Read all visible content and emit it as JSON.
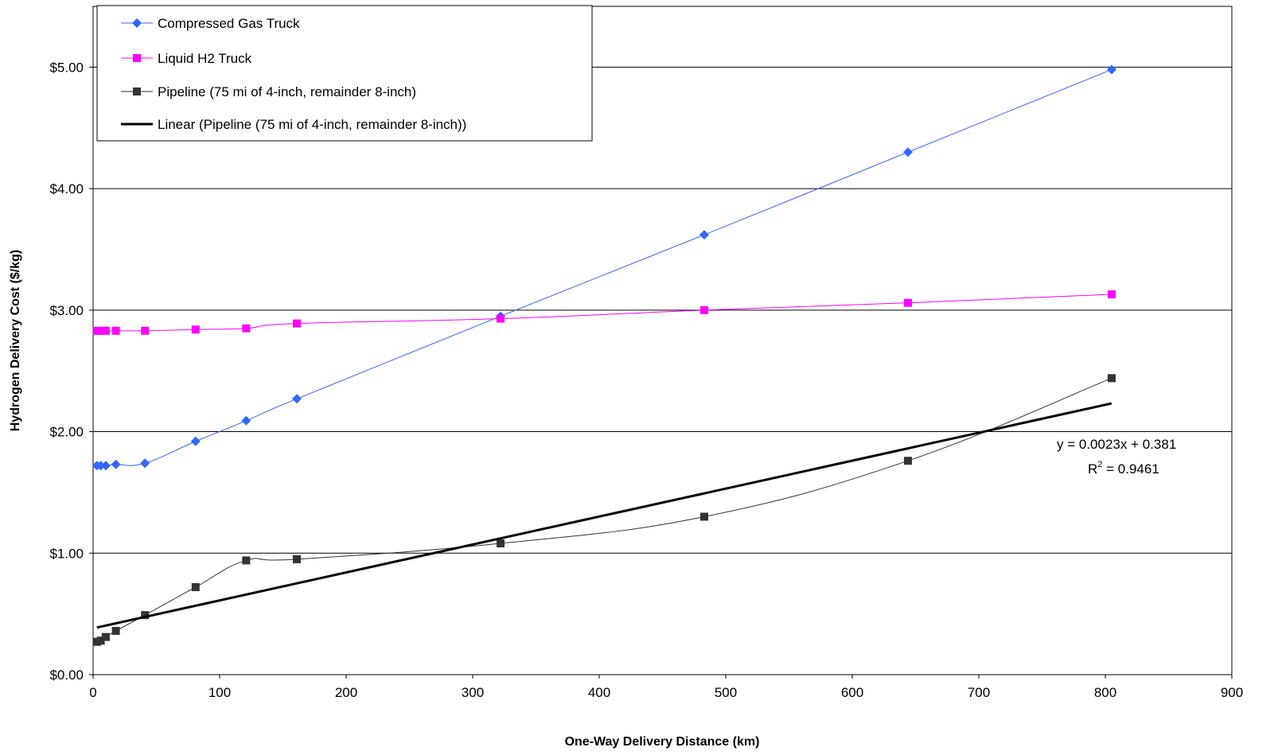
{
  "chart_data": {
    "type": "line",
    "xlabel": "One-Way Delivery Distance (km)",
    "ylabel": "Hydrogen Delivery Cost ($/kg)",
    "xlim": [
      0,
      900
    ],
    "ylim": [
      0,
      5.5
    ],
    "x_ticks": [
      0,
      100,
      200,
      300,
      400,
      500,
      600,
      700,
      800,
      900
    ],
    "x_tick_labels": [
      "0",
      "100",
      "200",
      "300",
      "400",
      "500",
      "600",
      "700",
      "800",
      "900"
    ],
    "y_ticks": [
      0,
      1,
      2,
      3,
      4,
      5
    ],
    "y_tick_labels": [
      "$0.00",
      "$1.00",
      "$2.00",
      "$3.00",
      "$4.00",
      "$5.00"
    ],
    "grid": "horizontal major gridlines",
    "legend_position": "top-left",
    "series": [
      {
        "name": "Compressed Gas Truck",
        "color": "#3366ff",
        "marker": "diamond",
        "x": [
          3,
          6,
          10,
          18,
          41,
          81,
          121,
          161,
          322,
          483,
          644,
          805
        ],
        "y": [
          1.72,
          1.72,
          1.72,
          1.73,
          1.74,
          1.92,
          2.09,
          2.27,
          2.95,
          3.62,
          4.3,
          4.98
        ]
      },
      {
        "name": "Liquid H2 Truck",
        "color": "#ff00ff",
        "marker": "square",
        "x": [
          3,
          6,
          10,
          18,
          41,
          81,
          121,
          161,
          322,
          483,
          644,
          805
        ],
        "y": [
          2.83,
          2.83,
          2.83,
          2.83,
          2.83,
          2.84,
          2.85,
          2.89,
          2.93,
          3.0,
          3.06,
          3.13
        ]
      },
      {
        "name": "Pipeline (75 mi of 4-inch, remainder 8-inch)",
        "color": "#333333",
        "marker": "square",
        "x": [
          3,
          6,
          10,
          18,
          41,
          81,
          121,
          161,
          322,
          483,
          644,
          805
        ],
        "y": [
          0.27,
          0.28,
          0.31,
          0.36,
          0.49,
          0.72,
          0.94,
          0.95,
          1.08,
          1.3,
          1.76,
          2.44
        ]
      }
    ],
    "trendline": {
      "name": "Linear (Pipeline (75 mi of 4-inch, remainder 8-inch))",
      "color": "#000000",
      "slope": 0.0023,
      "intercept": 0.381,
      "x_range": [
        3,
        805
      ],
      "equation": "y = 0.0023x + 0.381",
      "r2_prefix": "R",
      "r2_sup": "2",
      "r2_value": " = 0.9461"
    }
  }
}
